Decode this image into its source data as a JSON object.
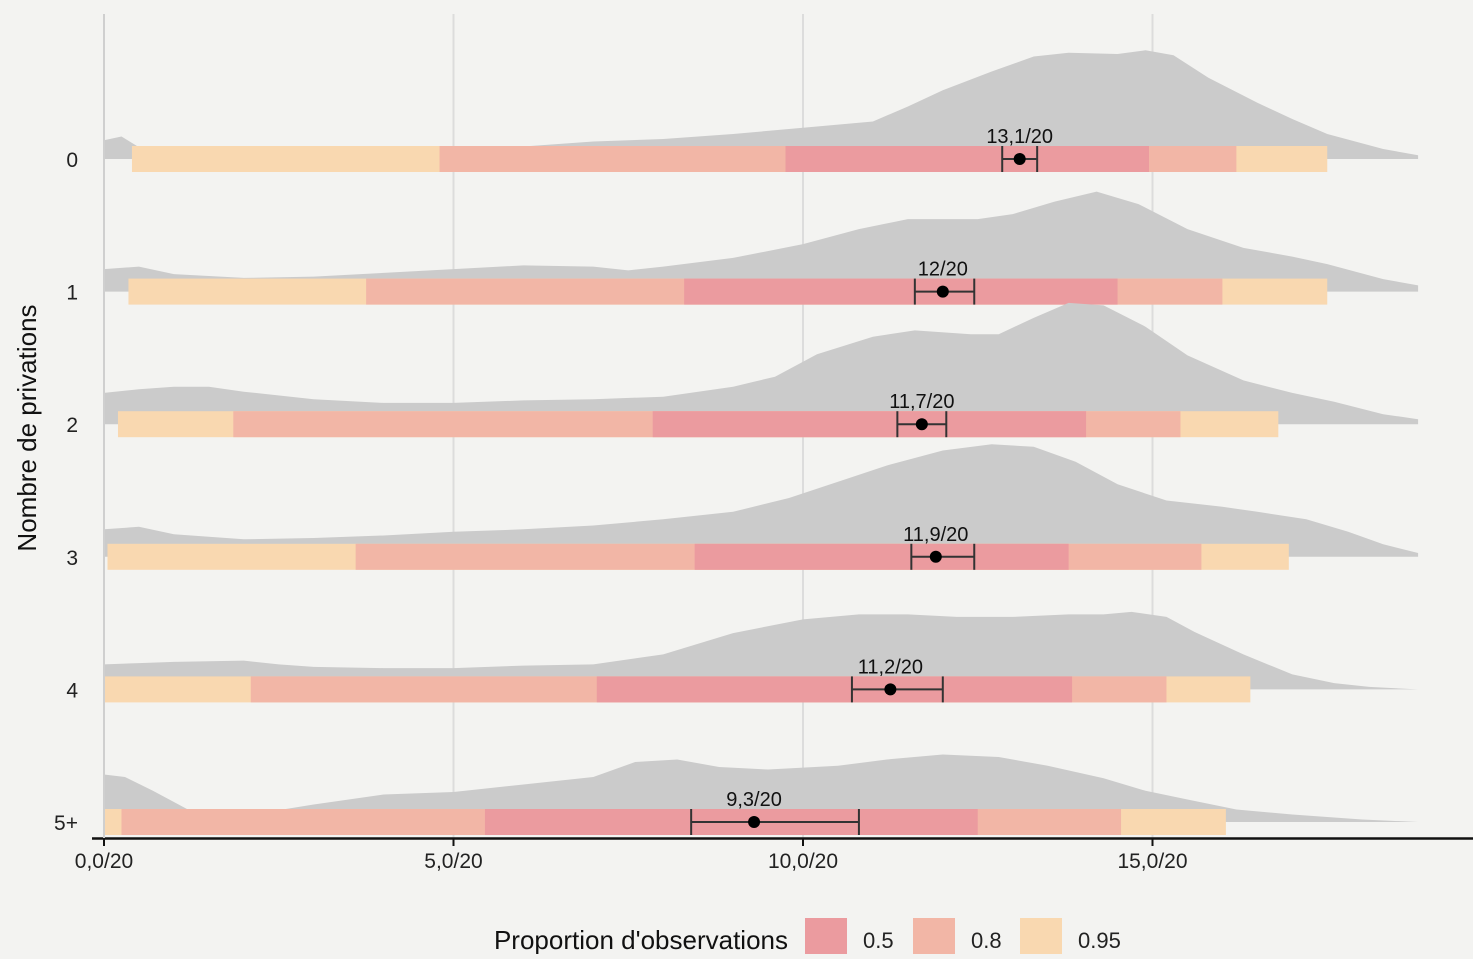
{
  "chart_data": {
    "type": "ridgeline",
    "ylabel": "Nombre de privations",
    "xlim": [
      0,
      19
    ],
    "xticks": [
      0,
      5,
      10,
      15
    ],
    "xtick_labels": [
      "0,0/20",
      "5,0/20",
      "10,0/20",
      "15,0/20"
    ],
    "grid": true,
    "colors": {
      "density": "#cbcbcb",
      "band_0_5": "#eb9b9f",
      "band_0_8": "#f2b6a6",
      "band_0_95": "#f9d8b0",
      "background": "#f3f3f1",
      "gridline": "#dcdcdc",
      "point": "#000000"
    },
    "legend": {
      "title": "Proportion d'observations",
      "position": "bottom",
      "items": [
        {
          "label": "0.5",
          "color": "#eb9b9f"
        },
        {
          "label": "0.8",
          "color": "#f2b6a6"
        },
        {
          "label": "0.95",
          "color": "#f9d8b0"
        }
      ]
    },
    "groups": [
      {
        "label": "0",
        "mean": 13.1,
        "mean_label": "13,1/20",
        "ci": [
          12.85,
          13.35
        ],
        "interval_0_95": [
          0.4,
          17.5
        ],
        "interval_0_8": [
          4.8,
          16.2
        ],
        "interval_0_5": [
          9.75,
          14.95
        ],
        "density": [
          [
            0,
            0.15
          ],
          [
            0.25,
            0.18
          ],
          [
            0.6,
            0.06
          ],
          [
            1,
            0.0
          ],
          [
            2,
            0.0
          ],
          [
            3,
            0.02
          ],
          [
            4,
            0.05
          ],
          [
            5,
            0.07
          ],
          [
            6,
            0.1
          ],
          [
            7,
            0.14
          ],
          [
            8,
            0.16
          ],
          [
            8.5,
            0.18
          ],
          [
            9,
            0.2
          ],
          [
            10,
            0.25
          ],
          [
            11,
            0.3
          ],
          [
            11.5,
            0.42
          ],
          [
            12,
            0.55
          ],
          [
            12.7,
            0.7
          ],
          [
            13.3,
            0.82
          ],
          [
            13.8,
            0.85
          ],
          [
            14.5,
            0.84
          ],
          [
            14.9,
            0.87
          ],
          [
            15.3,
            0.83
          ],
          [
            15.8,
            0.65
          ],
          [
            16.5,
            0.45
          ],
          [
            17,
            0.32
          ],
          [
            17.5,
            0.2
          ],
          [
            18.3,
            0.08
          ],
          [
            18.8,
            0.03
          ]
        ]
      },
      {
        "label": "1",
        "mean": 12.0,
        "mean_label": "12/20",
        "ci": [
          11.6,
          12.45
        ],
        "interval_0_95": [
          0.35,
          17.5
        ],
        "interval_0_8": [
          3.75,
          16.0
        ],
        "interval_0_5": [
          8.3,
          14.5
        ],
        "density": [
          [
            0,
            0.18
          ],
          [
            0.5,
            0.2
          ],
          [
            1,
            0.14
          ],
          [
            2,
            0.11
          ],
          [
            3,
            0.12
          ],
          [
            4,
            0.15
          ],
          [
            5,
            0.18
          ],
          [
            6,
            0.21
          ],
          [
            7,
            0.2
          ],
          [
            7.5,
            0.17
          ],
          [
            8,
            0.2
          ],
          [
            9,
            0.27
          ],
          [
            10,
            0.38
          ],
          [
            10.8,
            0.5
          ],
          [
            11.5,
            0.58
          ],
          [
            12,
            0.58
          ],
          [
            12.5,
            0.58
          ],
          [
            13,
            0.62
          ],
          [
            13.6,
            0.72
          ],
          [
            14.2,
            0.8
          ],
          [
            14.8,
            0.7
          ],
          [
            15.5,
            0.5
          ],
          [
            16.3,
            0.35
          ],
          [
            17,
            0.28
          ],
          [
            17.5,
            0.22
          ],
          [
            18.3,
            0.1
          ],
          [
            18.8,
            0.05
          ]
        ]
      },
      {
        "label": "2",
        "mean": 11.7,
        "mean_label": "11,7/20",
        "ci": [
          11.35,
          12.05
        ],
        "interval_0_95": [
          0.2,
          16.8
        ],
        "interval_0_8": [
          1.85,
          15.4
        ],
        "interval_0_5": [
          7.85,
          14.05
        ],
        "density": [
          [
            0,
            0.25
          ],
          [
            0.5,
            0.28
          ],
          [
            1,
            0.3
          ],
          [
            1.5,
            0.3
          ],
          [
            2,
            0.26
          ],
          [
            3,
            0.2
          ],
          [
            4,
            0.17
          ],
          [
            5,
            0.17
          ],
          [
            6,
            0.19
          ],
          [
            7,
            0.2
          ],
          [
            8,
            0.22
          ],
          [
            9,
            0.3
          ],
          [
            9.6,
            0.38
          ],
          [
            10.2,
            0.56
          ],
          [
            11,
            0.7
          ],
          [
            11.6,
            0.75
          ],
          [
            12.4,
            0.72
          ],
          [
            12.8,
            0.72
          ],
          [
            13.3,
            0.85
          ],
          [
            13.8,
            0.97
          ],
          [
            14.3,
            0.95
          ],
          [
            14.9,
            0.78
          ],
          [
            15.5,
            0.55
          ],
          [
            16.3,
            0.35
          ],
          [
            17,
            0.25
          ],
          [
            17.6,
            0.18
          ],
          [
            18.3,
            0.08
          ],
          [
            18.8,
            0.04
          ]
        ]
      },
      {
        "label": "3",
        "mean": 11.9,
        "mean_label": "11,9/20",
        "ci": [
          11.55,
          12.45
        ],
        "interval_0_95": [
          0.05,
          16.95
        ],
        "interval_0_8": [
          3.6,
          15.7
        ],
        "interval_0_5": [
          8.45,
          13.8
        ],
        "density": [
          [
            0,
            0.22
          ],
          [
            0.5,
            0.24
          ],
          [
            1,
            0.18
          ],
          [
            2,
            0.14
          ],
          [
            3,
            0.15
          ],
          [
            4,
            0.17
          ],
          [
            5,
            0.2
          ],
          [
            6,
            0.22
          ],
          [
            7,
            0.25
          ],
          [
            8,
            0.3
          ],
          [
            9,
            0.36
          ],
          [
            9.8,
            0.47
          ],
          [
            10.5,
            0.6
          ],
          [
            11.2,
            0.73
          ],
          [
            12,
            0.85
          ],
          [
            12.7,
            0.9
          ],
          [
            13.3,
            0.88
          ],
          [
            13.9,
            0.76
          ],
          [
            14.5,
            0.58
          ],
          [
            15.2,
            0.45
          ],
          [
            16,
            0.4
          ],
          [
            16.5,
            0.36
          ],
          [
            17.2,
            0.3
          ],
          [
            17.8,
            0.2
          ],
          [
            18.3,
            0.1
          ],
          [
            18.8,
            0.03
          ]
        ]
      },
      {
        "label": "4",
        "mean": 11.25,
        "mean_label": "11,2/20",
        "ci": [
          10.7,
          12.0
        ],
        "interval_0_95": [
          0.0,
          16.4
        ],
        "interval_0_8": [
          2.1,
          15.2
        ],
        "interval_0_5": [
          7.05,
          13.85
        ],
        "density": [
          [
            0,
            0.2
          ],
          [
            0.5,
            0.21
          ],
          [
            1,
            0.22
          ],
          [
            2,
            0.23
          ],
          [
            2.5,
            0.2
          ],
          [
            3,
            0.18
          ],
          [
            4,
            0.17
          ],
          [
            5,
            0.17
          ],
          [
            6,
            0.19
          ],
          [
            7,
            0.2
          ],
          [
            8,
            0.28
          ],
          [
            9,
            0.45
          ],
          [
            10,
            0.56
          ],
          [
            10.8,
            0.6
          ],
          [
            11.5,
            0.6
          ],
          [
            12.2,
            0.58
          ],
          [
            13,
            0.58
          ],
          [
            13.8,
            0.6
          ],
          [
            14.3,
            0.6
          ],
          [
            14.7,
            0.62
          ],
          [
            15.2,
            0.58
          ],
          [
            15.6,
            0.46
          ],
          [
            16.3,
            0.28
          ],
          [
            17,
            0.12
          ],
          [
            17.6,
            0.05
          ],
          [
            18.1,
            0.02
          ],
          [
            18.8,
            0.0
          ]
        ]
      },
      {
        "label": "5+",
        "mean": 9.3,
        "mean_label": "9,3/20",
        "ci": [
          8.4,
          10.8
        ],
        "interval_0_95": [
          0.0,
          16.05
        ],
        "interval_0_8": [
          0.25,
          14.55
        ],
        "interval_0_5": [
          5.45,
          12.5
        ],
        "density": [
          [
            0,
            0.38
          ],
          [
            0.3,
            0.36
          ],
          [
            0.7,
            0.25
          ],
          [
            1.2,
            0.1
          ],
          [
            2,
            0.05
          ],
          [
            3,
            0.14
          ],
          [
            4,
            0.22
          ],
          [
            5,
            0.24
          ],
          [
            6,
            0.3
          ],
          [
            7,
            0.36
          ],
          [
            7.6,
            0.48
          ],
          [
            8.2,
            0.5
          ],
          [
            8.8,
            0.44
          ],
          [
            9.5,
            0.42
          ],
          [
            10.5,
            0.45
          ],
          [
            11.2,
            0.5
          ],
          [
            12,
            0.54
          ],
          [
            12.8,
            0.52
          ],
          [
            13.5,
            0.45
          ],
          [
            14.3,
            0.35
          ],
          [
            14.9,
            0.25
          ],
          [
            15.5,
            0.18
          ],
          [
            16.2,
            0.1
          ],
          [
            17,
            0.06
          ],
          [
            18,
            0.02
          ],
          [
            18.8,
            0.0
          ]
        ]
      }
    ]
  }
}
